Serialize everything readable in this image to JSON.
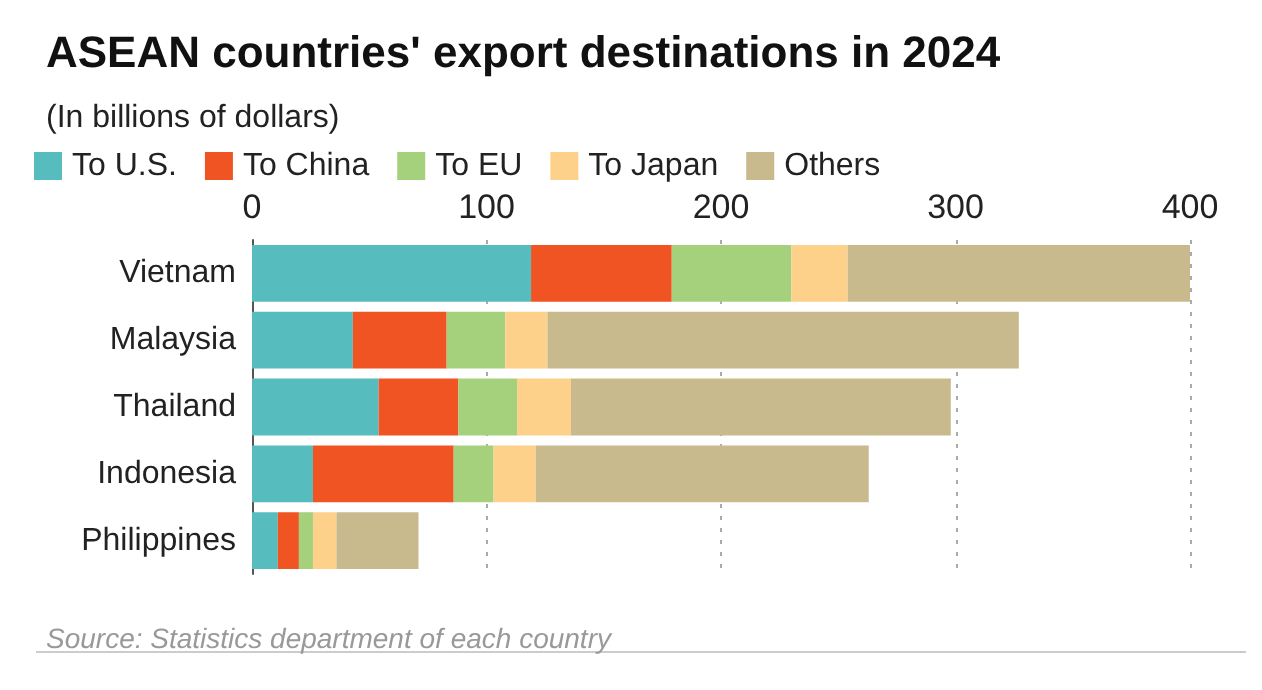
{
  "chart_data": {
    "type": "bar",
    "orientation": "horizontal",
    "stacked": true,
    "title": "ASEAN countries' export destinations in 2024",
    "subtitle": "(In billions of dollars)",
    "categories": [
      "Vietnam",
      "Malaysia",
      "Thailand",
      "Indonesia",
      "Philippines"
    ],
    "series": [
      {
        "name": "To U.S.",
        "color": "#56bcbd",
        "values": [
          119,
          43,
          54,
          26,
          11
        ]
      },
      {
        "name": "To China",
        "color": "#f05423",
        "values": [
          60,
          40,
          34,
          60,
          9
        ]
      },
      {
        "name": "To EU",
        "color": "#a6d17c",
        "values": [
          51,
          25,
          25,
          17,
          6
        ]
      },
      {
        "name": "To Japan",
        "color": "#fed18a",
        "values": [
          24,
          18,
          23,
          18,
          10
        ]
      },
      {
        "name": "Others",
        "color": "#c9ba8e",
        "values": [
          147,
          201,
          162,
          142,
          35
        ]
      }
    ],
    "xlim": [
      0,
      400
    ],
    "xticks": [
      0,
      100,
      200,
      300,
      400
    ],
    "grid": "x",
    "legend": "top left",
    "annotations": [
      "Source: Statistics department of each country"
    ]
  }
}
